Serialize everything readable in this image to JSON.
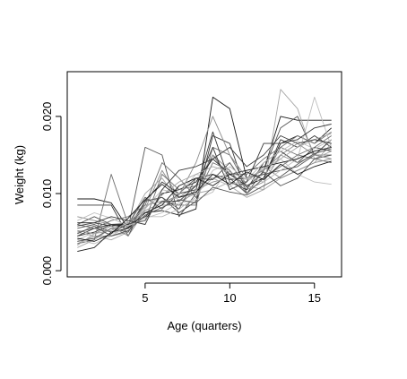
{
  "chart_data": {
    "type": "line",
    "title": "",
    "xlabel": "Age (quarters)",
    "ylabel": "Weight (kg)",
    "xlim": [
      0.4,
      16.6
    ],
    "ylim": [
      -0.0008,
      0.0258
    ],
    "x_ticks": [
      5,
      10,
      15
    ],
    "x_tick_labels": [
      "5",
      "10",
      "15"
    ],
    "y_ticks": [
      0.0,
      0.01,
      0.02
    ],
    "y_tick_labels": [
      "0.000",
      "0.010",
      "0.020"
    ],
    "grid": false,
    "legend": "none",
    "colors": {
      "axis": "#000000",
      "series_palette": [
        "#1a1a1a",
        "#3a3a3a",
        "#555555",
        "#707070",
        "#8c8c8c",
        "#a6a6a6",
        "#bdbdbd"
      ]
    },
    "x": [
      1,
      2,
      3,
      4,
      5,
      6,
      7,
      8,
      9,
      10,
      11,
      12,
      13,
      14,
      15,
      16
    ],
    "series": [
      {
        "values": [
          0.0093,
          0.0093,
          0.0088,
          0.0055,
          0.0075,
          0.0078,
          0.0072,
          0.008,
          0.0225,
          0.021,
          0.012,
          0.013,
          0.02,
          0.0195,
          0.0195,
          0.0195
        ]
      },
      {
        "values": [
          0.0085,
          0.0085,
          0.0085,
          0.0045,
          0.009,
          0.0095,
          0.0075,
          0.009,
          0.0175,
          0.0165,
          0.01,
          0.012,
          0.017,
          0.016,
          0.0175,
          0.016
        ]
      },
      {
        "values": [
          0.006,
          0.007,
          0.006,
          0.0055,
          0.016,
          0.015,
          0.007,
          0.01,
          0.015,
          0.012,
          0.01,
          0.013,
          0.0185,
          0.02,
          0.015,
          0.017
        ]
      },
      {
        "values": [
          0.005,
          0.0055,
          0.005,
          0.006,
          0.0085,
          0.009,
          0.0085,
          0.0085,
          0.016,
          0.015,
          0.011,
          0.012,
          0.016,
          0.015,
          0.0145,
          0.014
        ]
      },
      {
        "values": [
          0.0035,
          0.0045,
          0.0045,
          0.005,
          0.008,
          0.013,
          0.0095,
          0.011,
          0.015,
          0.013,
          0.0105,
          0.0115,
          0.015,
          0.0165,
          0.015,
          0.015
        ]
      },
      {
        "values": [
          0.003,
          0.004,
          0.0055,
          0.006,
          0.01,
          0.012,
          0.009,
          0.01,
          0.012,
          0.011,
          0.0095,
          0.0105,
          0.012,
          0.013,
          0.014,
          0.0165
        ]
      },
      {
        "values": [
          0.004,
          0.005,
          0.0048,
          0.0055,
          0.007,
          0.007,
          0.008,
          0.0095,
          0.013,
          0.014,
          0.011,
          0.0125,
          0.0145,
          0.0125,
          0.0115,
          0.0112
        ]
      },
      {
        "values": [
          0.0062,
          0.0062,
          0.0058,
          0.006,
          0.0065,
          0.01,
          0.0105,
          0.0115,
          0.0145,
          0.0125,
          0.011,
          0.012,
          0.0165,
          0.0175,
          0.0165,
          0.0185
        ]
      },
      {
        "values": [
          0.0045,
          0.005,
          0.006,
          0.0055,
          0.009,
          0.0115,
          0.01,
          0.0105,
          0.018,
          0.0115,
          0.0105,
          0.014,
          0.0155,
          0.014,
          0.016,
          0.0155
        ]
      },
      {
        "values": [
          0.0055,
          0.006,
          0.005,
          0.006,
          0.0095,
          0.008,
          0.01,
          0.012,
          0.0125,
          0.0118,
          0.012,
          0.0125,
          0.013,
          0.0135,
          0.015,
          0.017
        ]
      },
      {
        "values": [
          0.0035,
          0.004,
          0.0125,
          0.006,
          0.0065,
          0.0125,
          0.0105,
          0.011,
          0.012,
          0.0125,
          0.0125,
          0.0145,
          0.016,
          0.0175,
          0.0165,
          0.018
        ]
      },
      {
        "values": [
          0.007,
          0.0065,
          0.006,
          0.0062,
          0.0075,
          0.0085,
          0.0085,
          0.0105,
          0.0115,
          0.012,
          0.0115,
          0.0135,
          0.012,
          0.013,
          0.014,
          0.0145
        ]
      },
      {
        "values": [
          0.005,
          0.0045,
          0.004,
          0.005,
          0.0085,
          0.009,
          0.0095,
          0.01,
          0.0105,
          0.0115,
          0.011,
          0.0105,
          0.0235,
          0.021,
          0.0145,
          0.0155
        ]
      },
      {
        "values": [
          0.004,
          0.0035,
          0.0045,
          0.0058,
          0.008,
          0.0105,
          0.01,
          0.0125,
          0.012,
          0.011,
          0.012,
          0.0115,
          0.013,
          0.0145,
          0.0225,
          0.016
        ]
      },
      {
        "values": [
          0.0025,
          0.003,
          0.005,
          0.0055,
          0.0075,
          0.0085,
          0.011,
          0.012,
          0.011,
          0.0125,
          0.013,
          0.0135,
          0.014,
          0.0145,
          0.0155,
          0.016
        ]
      },
      {
        "values": [
          0.0045,
          0.0055,
          0.006,
          0.006,
          0.007,
          0.009,
          0.009,
          0.011,
          0.016,
          0.0105,
          0.0115,
          0.0165,
          0.0165,
          0.017,
          0.0185,
          0.019
        ]
      },
      {
        "values": [
          0.0038,
          0.0042,
          0.0055,
          0.005,
          0.009,
          0.0095,
          0.008,
          0.012,
          0.0118,
          0.014,
          0.0108,
          0.0128,
          0.011,
          0.012,
          0.0145,
          0.015
        ]
      },
      {
        "values": [
          0.006,
          0.0055,
          0.0065,
          0.007,
          0.0085,
          0.014,
          0.012,
          0.0095,
          0.014,
          0.013,
          0.01,
          0.012,
          0.0135,
          0.015,
          0.016,
          0.0175
        ]
      },
      {
        "values": [
          0.0052,
          0.0048,
          0.0058,
          0.0045,
          0.0078,
          0.0088,
          0.0098,
          0.014,
          0.02,
          0.015,
          0.012,
          0.013,
          0.015,
          0.014,
          0.015,
          0.0145
        ]
      },
      {
        "values": [
          0.0033,
          0.0048,
          0.0052,
          0.0062,
          0.0082,
          0.0098,
          0.0115,
          0.0125,
          0.0135,
          0.0128,
          0.0118,
          0.0132,
          0.0145,
          0.016,
          0.017,
          0.0178
        ]
      },
      {
        "values": [
          0.0065,
          0.0075,
          0.0068,
          0.0058,
          0.0068,
          0.0075,
          0.0088,
          0.0092,
          0.0102,
          0.0135,
          0.0118,
          0.014,
          0.0155,
          0.0168,
          0.0158,
          0.017
        ]
      },
      {
        "values": [
          0.0042,
          0.0038,
          0.0048,
          0.0068,
          0.0092,
          0.0112,
          0.0095,
          0.0102,
          0.0125,
          0.0112,
          0.0128,
          0.0118,
          0.0138,
          0.0125,
          0.0135,
          0.0142
        ]
      },
      {
        "values": [
          0.0058,
          0.0062,
          0.007,
          0.0065,
          0.006,
          0.0105,
          0.013,
          0.0135,
          0.0145,
          0.016,
          0.0135,
          0.015,
          0.0175,
          0.0165,
          0.017,
          0.0165
        ]
      },
      {
        "values": [
          0.0048,
          0.0058,
          0.0045,
          0.0052,
          0.0072,
          0.0082,
          0.0092,
          0.0088,
          0.0108,
          0.0102,
          0.0098,
          0.011,
          0.0122,
          0.0138,
          0.0152,
          0.0158
        ]
      }
    ]
  }
}
